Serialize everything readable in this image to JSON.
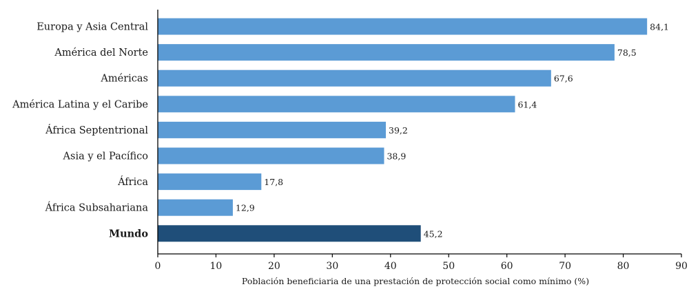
{
  "chart_data": {
    "type": "bar",
    "orientation": "horizontal",
    "categories": [
      "Europa y Asia Central",
      "América del Norte",
      "Américas",
      "América Latina y el Caribe",
      "África Septentrional",
      "Asia y el Pacífico",
      "África",
      "África Subsahariana",
      "Mundo"
    ],
    "values": [
      84.1,
      78.5,
      67.6,
      61.4,
      39.2,
      38.9,
      17.8,
      12.9,
      45.2
    ],
    "value_labels": [
      "84,1",
      "78,5",
      "67,6",
      "61,4",
      "39,2",
      "38,9",
      "17,8",
      "12,9",
      "45,2"
    ],
    "highlight_category": "Mundo",
    "xlabel": "Población beneficiaria de una prestación de protección social como mínimo (%)",
    "ylabel": "",
    "xlim": [
      0,
      90
    ],
    "xticks": [
      0,
      10,
      20,
      30,
      40,
      50,
      60,
      70,
      80,
      90
    ],
    "grid": false,
    "colors": {
      "bar": "#5b9bd5",
      "highlight": "#1f4e79"
    }
  }
}
